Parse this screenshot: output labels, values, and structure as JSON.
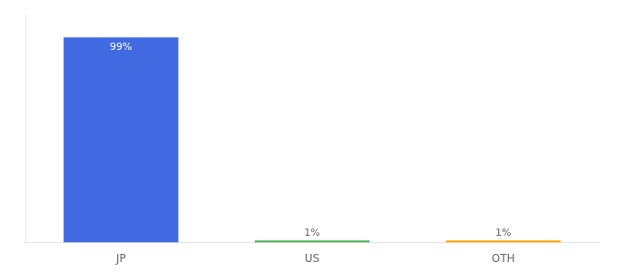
{
  "chart_data": {
    "type": "bar",
    "categories": [
      "JP",
      "US",
      "OTH"
    ],
    "values": [
      99,
      1,
      1
    ],
    "value_labels": [
      "99%",
      "1%",
      "1%"
    ],
    "colors": [
      "#4169e1",
      "#4caf50",
      "#ffa500"
    ],
    "ylim": [
      0,
      110
    ],
    "tick_labels": "x",
    "grid": false,
    "data_labels": true
  }
}
